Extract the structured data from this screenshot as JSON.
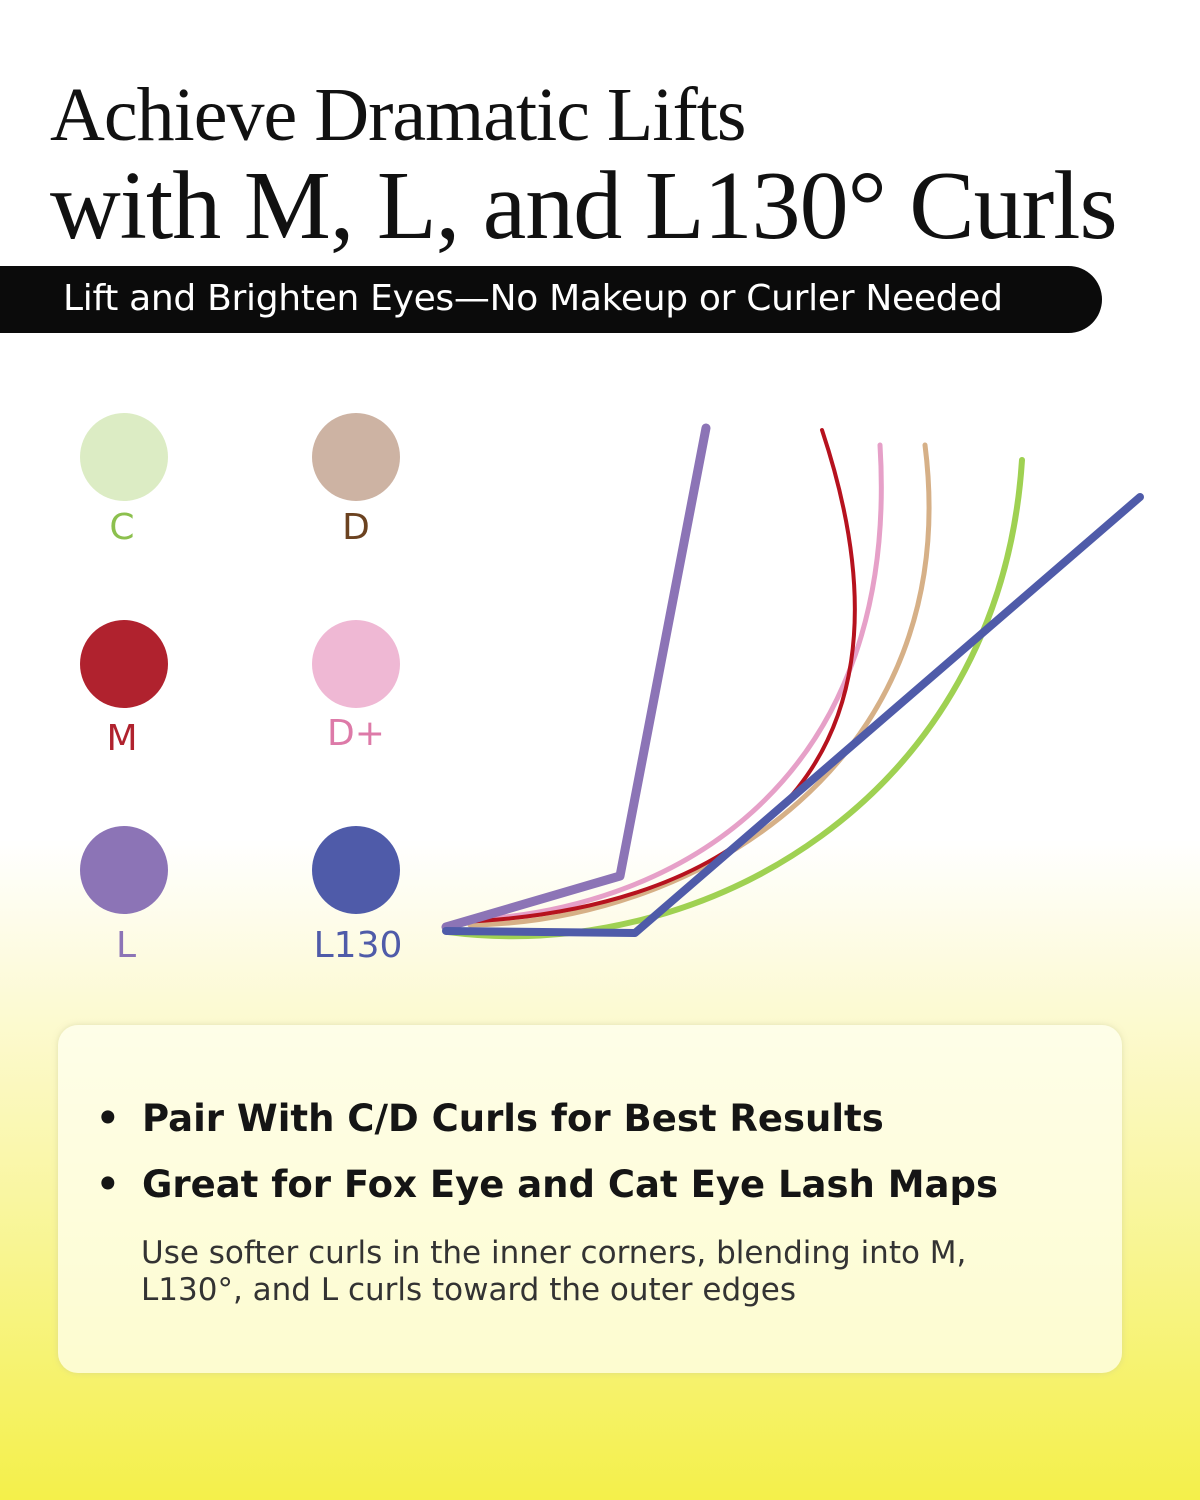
{
  "headline": {
    "line1": "Achieve Dramatic Lifts",
    "line2": "with M, L, and L130° Curls"
  },
  "banner": "Lift and Brighten Eyes—No Makeup or Curler Needed",
  "legend": [
    {
      "label": "C",
      "dot_color": "#dcecc4",
      "text_color": "#8cc04e"
    },
    {
      "label": "D",
      "dot_color": "#cdb3a3",
      "text_color": "#6b4220"
    },
    {
      "label": "M",
      "dot_color": "#b0222e",
      "text_color": "#b0222e"
    },
    {
      "label": "D+",
      "dot_color": "#efb8d4",
      "text_color": "#dd7aa8"
    },
    {
      "label": "L",
      "dot_color": "#8c74b6",
      "text_color": "#8c74b6"
    },
    {
      "label": "L130",
      "dot_color": "#4f5ba9",
      "text_color": "#4f5ba9"
    }
  ],
  "curve_colors": {
    "C": "#9fd152",
    "D": "#d6b087",
    "M": "#b6121e",
    "D+": "#e6a0c8",
    "L": "#8c74b6",
    "L130": "#4f5ba9"
  },
  "card": {
    "bullets": [
      "Pair With C/D Curls for Best Results",
      "Great for Fox Eye and Cat Eye Lash Maps"
    ],
    "bullet_symbol": "•",
    "note": "Use softer curls in the inner corners, blending into M, L130°, and L curls toward the outer edges"
  }
}
